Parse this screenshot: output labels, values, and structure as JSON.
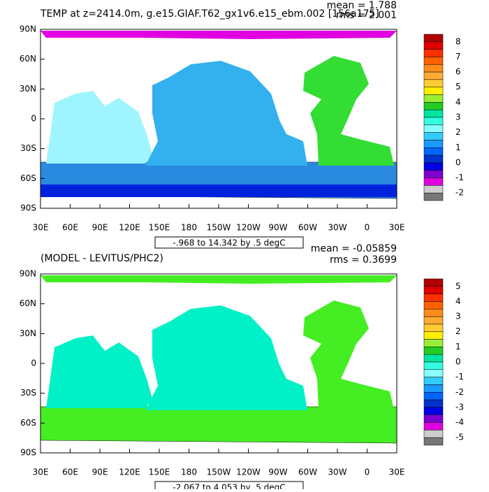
{
  "panels": [
    {
      "title": "TEMP at z=2414.0m, g.e15.GIAF.T62_gx1v6.e15_ebm.002 [156a175]",
      "mean": "mean = 1.788",
      "rms": "rms = 2.001",
      "range": "-.968 to 14.342 by .5 degC",
      "colorbar_labels": [
        "8",
        "7",
        "6",
        "5",
        "4",
        "3",
        "2",
        "1",
        "0",
        "-1",
        "-2"
      ]
    },
    {
      "title": "(MODEL - LEVITUS/PHC2)",
      "mean": "mean = -0.05859",
      "rms": "rms = 0.3699",
      "range": "-2.067 to 4.053 by .5 degC",
      "colorbar_labels": [
        "5",
        "4",
        "3",
        "2",
        "1",
        "0",
        "-1",
        "-2",
        "-3",
        "-4",
        "-5"
      ]
    }
  ],
  "lat_labels": [
    "90N",
    "60N",
    "30N",
    "0",
    "30S",
    "60S",
    "90S"
  ],
  "lon_labels": [
    "30E",
    "60E",
    "90E",
    "120E",
    "150E",
    "180",
    "150W",
    "120W",
    "90W",
    "60W",
    "30W",
    "0",
    "30E"
  ],
  "colorbar_colors": [
    "#b00000",
    "#e00000",
    "#ff3000",
    "#ff6000",
    "#ff8c1a",
    "#ffaa33",
    "#ffcc33",
    "#ffee00",
    "#99ee33",
    "#22cc22",
    "#00e6a0",
    "#33ffe0",
    "#88ffff",
    "#33ccff",
    "#1a99ff",
    "#0066ff",
    "#0033cc",
    "#0000e6",
    "#8000d0",
    "#e000e0",
    "#cccccc",
    "#777777"
  ]
}
